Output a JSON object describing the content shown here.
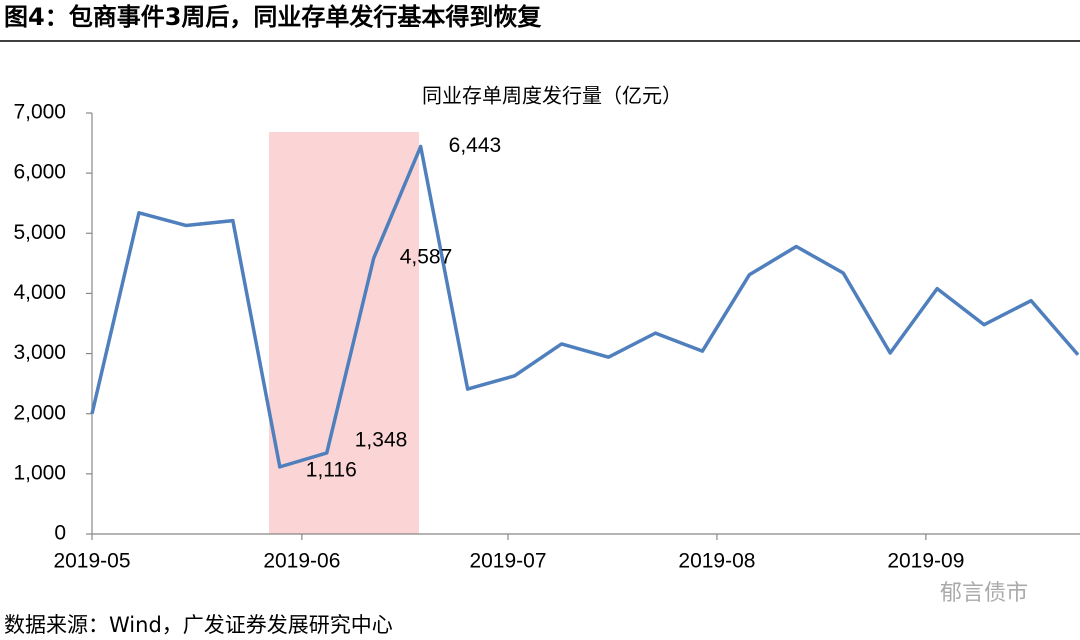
{
  "figure_title": "图4：包商事件3周后，同业存单发行基本得到恢复",
  "source": "数据来源：Wind，广发证券发展研究中心",
  "watermark": "郁言债市",
  "chart_data": {
    "type": "line",
    "title": "同业存单周度发行量（亿元）",
    "x": [
      0,
      1,
      2,
      3,
      4,
      5,
      6,
      7,
      8,
      9,
      10,
      11,
      12,
      13,
      14,
      15,
      16,
      17,
      18,
      19,
      20,
      21
    ],
    "xlim": [
      0,
      21
    ],
    "xticks": [
      {
        "value": 0,
        "label": "2019-05"
      },
      {
        "value": 4.47,
        "label": "2019-06"
      },
      {
        "value": 8.86,
        "label": "2019-07"
      },
      {
        "value": 13.31,
        "label": "2019-08"
      },
      {
        "value": 17.76,
        "label": "2019-09"
      }
    ],
    "ylim": [
      0,
      7000
    ],
    "yticks": [
      0,
      {
        "value": 1000,
        "label": "1,000"
      },
      {
        "value": 2000,
        "label": "2,000"
      },
      {
        "value": 3000,
        "label": "3,000"
      },
      {
        "value": 4000,
        "label": "4,000"
      },
      {
        "value": 5000,
        "label": "5,000"
      },
      {
        "value": 6000,
        "label": "6,000"
      },
      {
        "value": 7000,
        "label": "7,000"
      }
    ],
    "grid": false,
    "color": "#4f7fbd",
    "values": [
      2000,
      5340,
      5130,
      5210,
      1116,
      1348,
      4587,
      6443,
      2410,
      2630,
      3160,
      2940,
      3340,
      3040,
      4310,
      4780,
      4340,
      3010,
      4080,
      3480,
      3880,
      2980
    ],
    "value_labels": [
      null,
      null,
      null,
      null,
      "1,116",
      "1,348",
      "4,587",
      "6,443",
      null,
      null,
      null,
      null,
      null,
      null,
      null,
      null,
      null,
      null,
      null,
      null,
      null,
      null
    ]
  }
}
